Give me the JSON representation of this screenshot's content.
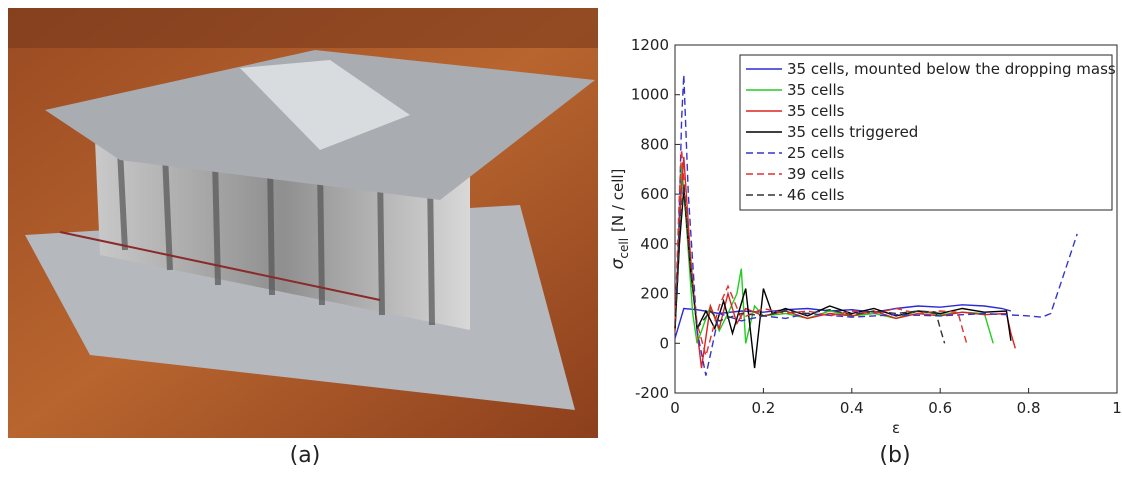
{
  "captions": [
    "(a)",
    "(b)"
  ],
  "chart_data": {
    "type": "line",
    "xlabel": "ε",
    "ylabel_symbol": "σ",
    "ylabel_subscript": "cell",
    "ylabel_unit": "[N / cell]",
    "xlim": [
      0,
      1
    ],
    "xticks": [
      0,
      0.2,
      0.4,
      0.6,
      0.8,
      1
    ],
    "ylim": [
      -200,
      1200
    ],
    "yticks": [
      -200,
      0,
      200,
      400,
      600,
      800,
      1000,
      1200
    ],
    "grid": false,
    "legend": "upper right",
    "series": [
      {
        "name": "35 cells, mounted below the dropping mass",
        "color": "#2b2bd6",
        "dash": false,
        "x": [
          0,
          0.02,
          0.05,
          0.1,
          0.15,
          0.2,
          0.25,
          0.3,
          0.35,
          0.4,
          0.45,
          0.5,
          0.55,
          0.6,
          0.65,
          0.7,
          0.74,
          0.76
        ],
        "values": [
          20,
          140,
          135,
          120,
          130,
          125,
          135,
          140,
          130,
          135,
          125,
          140,
          150,
          145,
          155,
          150,
          140,
          130
        ]
      },
      {
        "name": "35 cells",
        "color": "#22cc22",
        "dash": false,
        "x": [
          0,
          0.01,
          0.015,
          0.025,
          0.04,
          0.05,
          0.08,
          0.1,
          0.12,
          0.14,
          0.15,
          0.16,
          0.18,
          0.2,
          0.25,
          0.3,
          0.35,
          0.4,
          0.45,
          0.5,
          0.55,
          0.6,
          0.65,
          0.7,
          0.71,
          0.72
        ],
        "values": [
          50,
          400,
          720,
          500,
          120,
          0,
          150,
          50,
          120,
          200,
          300,
          0,
          150,
          110,
          120,
          100,
          130,
          110,
          120,
          100,
          130,
          115,
          125,
          120,
          60,
          0
        ]
      },
      {
        "name": "35 cells",
        "color": "#dd2222",
        "dash": false,
        "x": [
          0,
          0.01,
          0.02,
          0.035,
          0.05,
          0.06,
          0.08,
          0.1,
          0.12,
          0.14,
          0.16,
          0.2,
          0.25,
          0.3,
          0.35,
          0.4,
          0.45,
          0.5,
          0.55,
          0.6,
          0.65,
          0.7,
          0.75,
          0.76,
          0.77
        ],
        "values": [
          50,
          500,
          750,
          350,
          50,
          -100,
          150,
          60,
          200,
          80,
          140,
          110,
          130,
          100,
          120,
          110,
          130,
          100,
          120,
          110,
          125,
          115,
          120,
          40,
          -20
        ]
      },
      {
        "name": "35 cells triggered",
        "color": "#000000",
        "dash": false,
        "x": [
          0,
          0.01,
          0.02,
          0.035,
          0.05,
          0.07,
          0.09,
          0.11,
          0.13,
          0.15,
          0.16,
          0.18,
          0.2,
          0.22,
          0.25,
          0.3,
          0.35,
          0.4,
          0.45,
          0.5,
          0.55,
          0.6,
          0.65,
          0.7,
          0.75,
          0.76
        ],
        "values": [
          60,
          400,
          620,
          300,
          60,
          130,
          60,
          170,
          40,
          160,
          220,
          -100,
          220,
          120,
          140,
          110,
          150,
          120,
          140,
          110,
          130,
          120,
          140,
          125,
          130,
          10
        ]
      },
      {
        "name": "25 cells",
        "color": "#3535cc",
        "dash": true,
        "x": [
          0.005,
          0.015,
          0.02,
          0.03,
          0.05,
          0.07,
          0.1,
          0.15,
          0.2,
          0.25,
          0.3,
          0.4,
          0.5,
          0.6,
          0.7,
          0.75,
          0.8,
          0.83,
          0.85,
          0.88,
          0.91
        ],
        "values": [
          200,
          900,
          1080,
          600,
          50,
          -130,
          120,
          90,
          110,
          100,
          120,
          105,
          115,
          110,
          120,
          115,
          110,
          105,
          120,
          280,
          440
        ]
      },
      {
        "name": "39 cells",
        "color": "#e03030",
        "dash": true,
        "x": [
          0,
          0.01,
          0.015,
          0.03,
          0.05,
          0.07,
          0.1,
          0.12,
          0.15,
          0.2,
          0.25,
          0.3,
          0.35,
          0.4,
          0.45,
          0.5,
          0.55,
          0.6,
          0.64,
          0.65,
          0.66
        ],
        "values": [
          80,
          600,
          780,
          400,
          80,
          -50,
          150,
          230,
          100,
          140,
          120,
          130,
          110,
          130,
          120,
          140,
          120,
          130,
          125,
          60,
          0
        ]
      },
      {
        "name": "46 cells",
        "color": "#333333",
        "dash": true,
        "x": [
          0,
          0.01,
          0.02,
          0.035,
          0.05,
          0.08,
          0.1,
          0.15,
          0.2,
          0.25,
          0.3,
          0.35,
          0.4,
          0.45,
          0.5,
          0.55,
          0.59,
          0.6,
          0.61
        ],
        "values": [
          70,
          450,
          640,
          300,
          60,
          130,
          90,
          120,
          110,
          130,
          120,
          135,
          115,
          130,
          120,
          130,
          125,
          60,
          0
        ]
      }
    ]
  }
}
